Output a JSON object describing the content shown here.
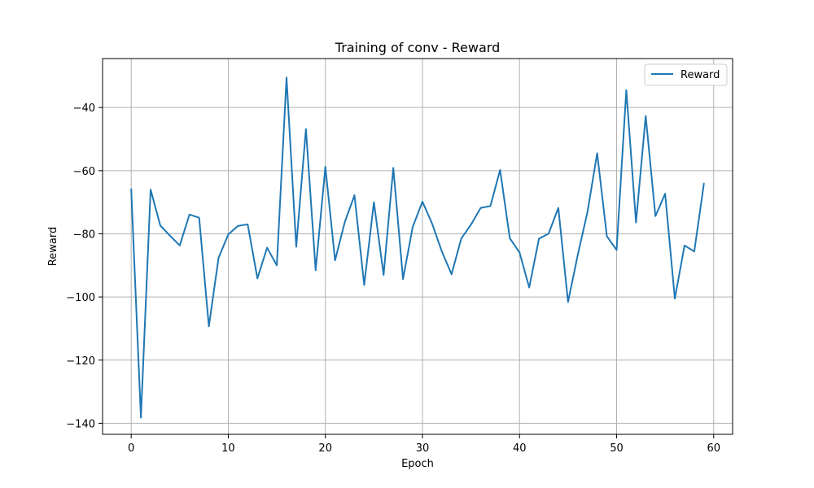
{
  "chart_data": {
    "type": "line",
    "title": "Training of conv - Reward",
    "xlabel": "Epoch",
    "ylabel": "Reward",
    "xlim": [
      -2.95,
      61.95
    ],
    "ylim": [
      -143.5,
      -24.5
    ],
    "xticks": [
      0,
      10,
      20,
      30,
      40,
      50,
      60
    ],
    "yticks": [
      -140,
      -120,
      -100,
      -80,
      -60,
      -40
    ],
    "xtick_labels": [
      "0",
      "10",
      "20",
      "30",
      "40",
      "50",
      "60"
    ],
    "ytick_labels": [
      "−140",
      "−120",
      "−100",
      "−80",
      "−60",
      "−40"
    ],
    "grid": true,
    "legend_position": "top-right",
    "series": [
      {
        "name": "Reward",
        "color": "#1f77b4",
        "x": [
          0,
          1,
          2,
          3,
          4,
          5,
          6,
          7,
          8,
          9,
          10,
          11,
          12,
          13,
          14,
          15,
          16,
          17,
          18,
          19,
          20,
          21,
          22,
          23,
          24,
          25,
          26,
          27,
          28,
          29,
          30,
          31,
          32,
          33,
          34,
          35,
          36,
          37,
          38,
          39,
          40,
          41,
          42,
          43,
          44,
          45,
          46,
          47,
          48,
          49,
          50,
          51,
          52,
          53,
          54,
          55,
          56,
          57,
          58,
          59
        ],
        "y": [
          -65.8,
          -138.2,
          -66.0,
          -77.4,
          -80.6,
          -83.7,
          -73.9,
          -74.9,
          -109.3,
          -87.6,
          -80.2,
          -77.5,
          -77.0,
          -94.1,
          -84.4,
          -90.0,
          -30.5,
          -84.1,
          -46.8,
          -91.5,
          -58.8,
          -88.4,
          -76.3,
          -67.8,
          -96.2,
          -70.0,
          -93.0,
          -59.1,
          -94.3,
          -77.8,
          -69.8,
          -76.8,
          -85.6,
          -92.8,
          -81.5,
          -77.1,
          -71.8,
          -71.2,
          -59.8,
          -81.4,
          -85.9,
          -97.0,
          -81.6,
          -79.9,
          -71.8,
          -101.6,
          -86.7,
          -73.1,
          -54.5,
          -80.8,
          -85.1,
          -34.5,
          -76.4,
          -42.7,
          -74.4,
          -67.3,
          -100.5,
          -83.7,
          -85.6,
          -64.0
        ]
      }
    ]
  }
}
